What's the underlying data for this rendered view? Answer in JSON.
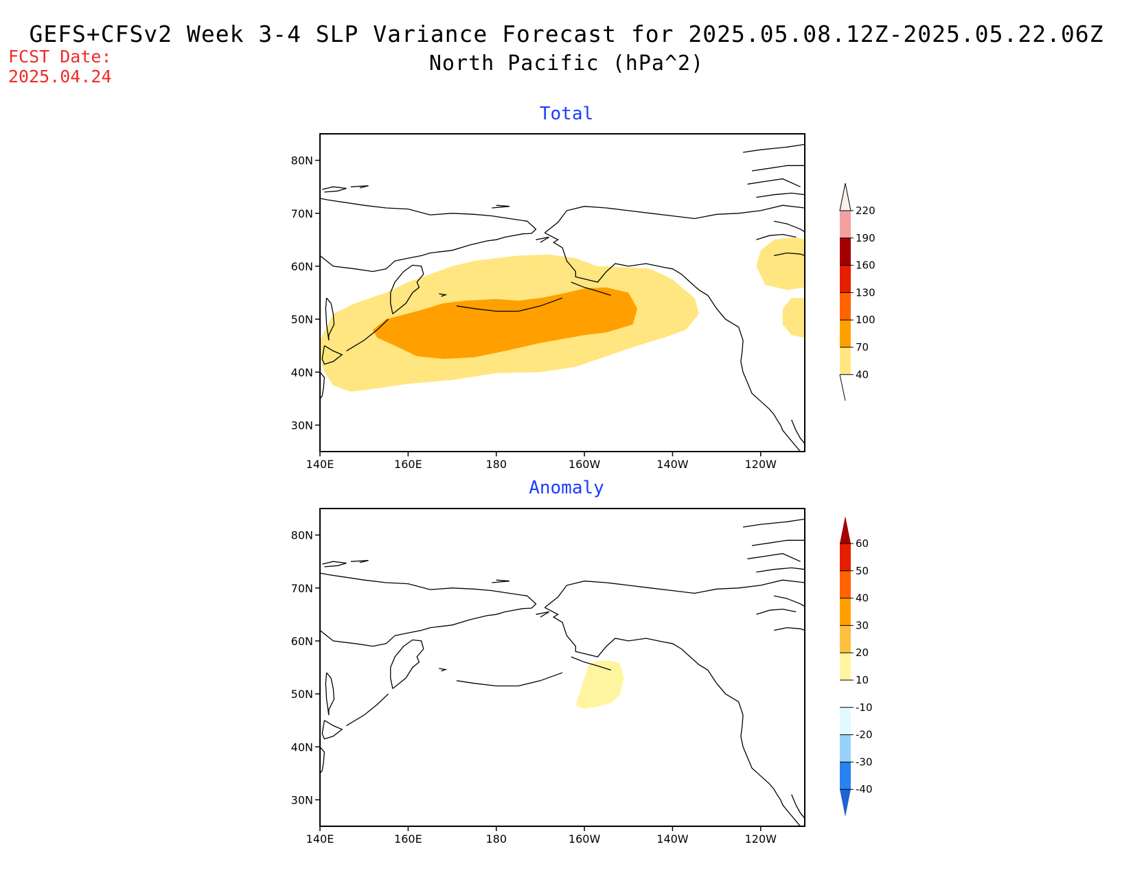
{
  "header": {
    "title": "GEFS+CFSv2 Week 3-4 SLP Variance Forecast for 2025.05.08.12Z-2025.05.22.06Z",
    "subtitle": "North Pacific (hPa^2)",
    "fcst_date_label": "FCST Date:",
    "fcst_date_value": "2025.04.24"
  },
  "map": {
    "lat_labels": [
      "80N",
      "70N",
      "60N",
      "50N",
      "40N",
      "30N"
    ],
    "lat_values": [
      80,
      70,
      60,
      50,
      40,
      30
    ],
    "lon_labels": [
      "140E",
      "160E",
      "180",
      "160W",
      "140W",
      "120W"
    ],
    "lon_values": [
      140,
      160,
      180,
      200,
      220,
      240
    ],
    "lon_range": [
      140,
      250
    ],
    "lat_range": [
      25,
      85
    ]
  },
  "panels": [
    {
      "title": "Total",
      "colorbar": {
        "levels": [
          "40",
          "70",
          "100",
          "130",
          "160",
          "190",
          "220"
        ],
        "colors": [
          "#ffe680",
          "#ffa000",
          "#ff6400",
          "#e61e00",
          "#a50000",
          "#f4a0a0",
          "#fadcdc"
        ]
      }
    },
    {
      "title": "Anomaly",
      "colorbar": {
        "levels": [
          "60",
          "50",
          "40",
          "30",
          "20",
          "10",
          "-10",
          "-20",
          "-30",
          "-40"
        ],
        "colors_top_down": [
          "#a50000",
          "#e61e00",
          "#ff6400",
          "#ffa000",
          "#ffc040",
          "#fff5a0",
          "#ffffff",
          "#e0faff",
          "#96d2fa",
          "#2882f0",
          "#1e64d2"
        ]
      }
    }
  ]
}
